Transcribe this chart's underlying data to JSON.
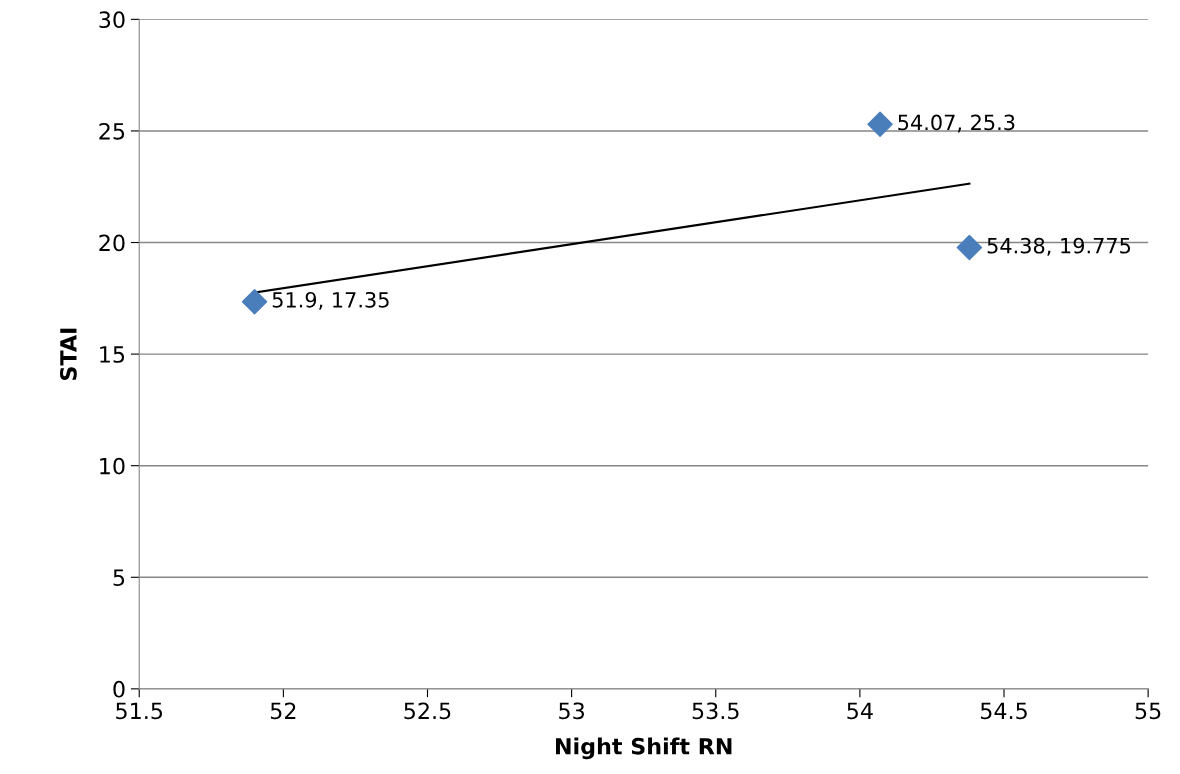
{
  "chart_data": {
    "type": "scatter",
    "xlabel": "Night Shift RN",
    "ylabel": "STAI",
    "series": [
      {
        "color": "#4a7ebb",
        "x": [
          51.9,
          54.07,
          54.38
        ],
        "values": [
          17.35,
          25.3,
          19.775
        ],
        "value_labels": [
          "51.9, 17.35",
          "54.07, 25.3",
          "54.38, 19.775"
        ],
        "marker": "diamond"
      },
      {
        "type": "line",
        "color": "#000000",
        "x": [
          51.9,
          54.38
        ],
        "values": [
          17.76,
          22.64
        ],
        "marker": "none",
        "line_style": "solid"
      }
    ],
    "xlim": [
      51.5,
      55
    ],
    "xticks": [
      51.5,
      52,
      52.5,
      53,
      53.5,
      54,
      54.5,
      55
    ],
    "ylim": [
      0,
      30
    ],
    "yticks": [
      0,
      5,
      10,
      15,
      20,
      25,
      30
    ],
    "grid": "y",
    "legend": false
  }
}
